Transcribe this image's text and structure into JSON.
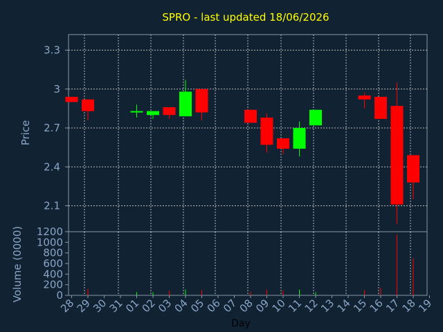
{
  "chart_data": {
    "type": "candlestick",
    "title": "SPRO - last updated 18/06/2026",
    "xlabel": "Day",
    "ylabel": "Price",
    "volume_ylabel": "Volume (0000)",
    "grid": true,
    "x_ticks": [
      "28",
      "29",
      "30",
      "31",
      "01",
      "02",
      "03",
      "04",
      "05",
      "06",
      "07",
      "08",
      "09",
      "10",
      "11",
      "12",
      "13",
      "14",
      "15",
      "16",
      "17",
      "18",
      "19"
    ],
    "price_ticks": [
      "2.1",
      "2.4",
      "2.7",
      "3",
      "3.3"
    ],
    "price_range": [
      1.9,
      3.42
    ],
    "volume_ticks": [
      "0",
      "200",
      "400",
      "600",
      "800",
      "1000",
      "1200"
    ],
    "volume_range": [
      0,
      1200
    ],
    "candles": [
      {
        "day": "28",
        "open": 2.94,
        "close": 2.9,
        "high": 2.94,
        "low": 2.9,
        "volume": 5
      },
      {
        "day": "29",
        "open": 2.92,
        "close": 2.83,
        "high": 2.92,
        "low": 2.76,
        "volume": 120
      },
      {
        "day": "01",
        "open": 2.83,
        "close": 2.83,
        "high": 2.88,
        "low": 2.78,
        "volume": 60
      },
      {
        "day": "02",
        "open": 2.8,
        "close": 2.83,
        "high": 2.83,
        "low": 2.77,
        "volume": 60
      },
      {
        "day": "03",
        "open": 2.86,
        "close": 2.8,
        "high": 2.86,
        "low": 2.77,
        "volume": 90
      },
      {
        "day": "04",
        "open": 2.79,
        "close": 2.98,
        "high": 3.07,
        "low": 2.79,
        "volume": 110
      },
      {
        "day": "05",
        "open": 3.0,
        "close": 2.82,
        "high": 3.0,
        "low": 2.76,
        "volume": 100
      },
      {
        "day": "08",
        "open": 2.84,
        "close": 2.74,
        "high": 2.84,
        "low": 2.74,
        "volume": 70
      },
      {
        "day": "09",
        "open": 2.78,
        "close": 2.57,
        "high": 2.81,
        "low": 2.51,
        "volume": 110
      },
      {
        "day": "10",
        "open": 2.62,
        "close": 2.54,
        "high": 2.62,
        "low": 2.5,
        "volume": 90
      },
      {
        "day": "11",
        "open": 2.54,
        "close": 2.7,
        "high": 2.75,
        "low": 2.48,
        "volume": 110
      },
      {
        "day": "12",
        "open": 2.72,
        "close": 2.84,
        "high": 2.84,
        "low": 2.72,
        "volume": 60
      },
      {
        "day": "15",
        "open": 2.95,
        "close": 2.92,
        "high": 2.97,
        "low": 2.85,
        "volume": 100
      },
      {
        "day": "16",
        "open": 2.94,
        "close": 2.77,
        "high": 2.94,
        "low": 2.77,
        "volume": 140
      },
      {
        "day": "17",
        "open": 2.87,
        "close": 2.11,
        "high": 3.05,
        "low": 1.96,
        "volume": 1150
      },
      {
        "day": "18",
        "open": 2.49,
        "close": 2.28,
        "high": 2.49,
        "low": 2.15,
        "volume": 700
      }
    ]
  },
  "colors": {
    "background": "#112233",
    "plot_border": "#8899aa",
    "grid": "#bbbbbb",
    "title": "#ffff00",
    "axis_text": "#8aa6c6",
    "up": "#00ff00",
    "down": "#ff0000"
  }
}
